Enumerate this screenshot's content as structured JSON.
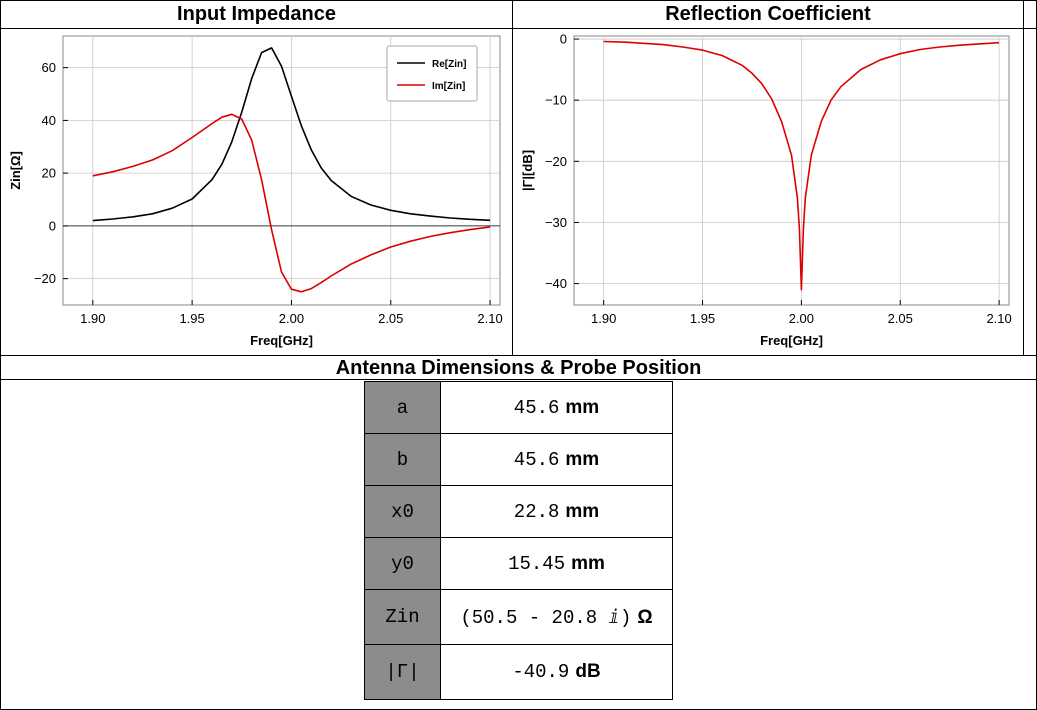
{
  "colors": {
    "series_re": "#000000",
    "series_im": "#dd0000",
    "series_gamma": "#dd0000",
    "key_cell_bg": "#8c8c8c",
    "grid": "#c8c8c8"
  },
  "panels": {
    "left_title": "Input Impedance",
    "right_title": "Reflection Coefficient",
    "bottom_title": "Antenna Dimensions & Probe Position"
  },
  "chart_data": [
    {
      "type": "line",
      "title": "Input Impedance",
      "xlabel": "Freq[GHz]",
      "ylabel": "Zin[Ω]",
      "xlim": [
        1.885,
        2.105
      ],
      "ylim": [
        -30,
        72
      ],
      "xticks": [
        1.9,
        1.95,
        2.0,
        2.05,
        2.1
      ],
      "xtick_labels": [
        "1.90",
        "1.95",
        "2.00",
        "2.05",
        "2.10"
      ],
      "yticks": [
        -20,
        0,
        20,
        40,
        60
      ],
      "ytick_labels": [
        "−20",
        "0",
        "20",
        "40",
        "60"
      ],
      "grid": true,
      "legend_position": "top-right",
      "series": [
        {
          "name": "Re[Zin]",
          "x": [
            1.9,
            1.91,
            1.92,
            1.93,
            1.94,
            1.95,
            1.96,
            1.965,
            1.97,
            1.975,
            1.98,
            1.985,
            1.99,
            1.995,
            2.0,
            2.005,
            2.01,
            2.015,
            2.02,
            2.03,
            2.04,
            2.05,
            2.06,
            2.07,
            2.08,
            2.09,
            2.1
          ],
          "y": [
            2.0,
            2.6,
            3.4,
            4.6,
            6.7,
            10.2,
            17.5,
            23.4,
            31.9,
            43.2,
            55.9,
            65.7,
            67.5,
            60.5,
            49.2,
            37.9,
            28.8,
            22.0,
            17.2,
            11.2,
            7.9,
            5.9,
            4.6,
            3.7,
            3.0,
            2.5,
            2.1
          ]
        },
        {
          "name": "Im[Zin]",
          "x": [
            1.9,
            1.91,
            1.92,
            1.93,
            1.94,
            1.95,
            1.96,
            1.965,
            1.97,
            1.975,
            1.98,
            1.985,
            1.99,
            1.995,
            2.0,
            2.005,
            2.01,
            2.015,
            2.02,
            2.03,
            2.04,
            2.05,
            2.06,
            2.07,
            2.08,
            2.09,
            2.1
          ],
          "y": [
            19.0,
            20.5,
            22.5,
            25.0,
            28.5,
            33.5,
            38.8,
            41.2,
            42.3,
            40.5,
            32.5,
            17.5,
            -1.5,
            -17.5,
            -24.0,
            -25.0,
            -23.8,
            -21.5,
            -19.0,
            -14.5,
            -11.0,
            -8.0,
            -5.8,
            -4.0,
            -2.6,
            -1.4,
            -0.4
          ]
        }
      ]
    },
    {
      "type": "line",
      "title": "Reflection Coefficient",
      "xlabel": "Freq[GHz]",
      "ylabel": "|Γ|[dB]",
      "xlim": [
        1.885,
        2.105
      ],
      "ylim": [
        -43.5,
        0.5
      ],
      "xticks": [
        1.9,
        1.95,
        2.0,
        2.05,
        2.1
      ],
      "xtick_labels": [
        "1.90",
        "1.95",
        "2.00",
        "2.05",
        "2.10"
      ],
      "yticks": [
        0,
        -10,
        -20,
        -30,
        -40
      ],
      "ytick_labels": [
        "0",
        "−10",
        "−20",
        "−30",
        "−40"
      ],
      "grid": true,
      "series": [
        {
          "x": [
            1.9,
            1.91,
            1.92,
            1.93,
            1.94,
            1.95,
            1.96,
            1.97,
            1.975,
            1.98,
            1.985,
            1.99,
            1.995,
            1.998,
            1.999,
            2.0,
            2.001,
            2.002,
            2.005,
            2.01,
            2.015,
            2.02,
            2.03,
            2.04,
            2.05,
            2.06,
            2.07,
            2.08,
            2.09,
            2.1
          ],
          "y": [
            -0.4,
            -0.5,
            -0.7,
            -0.9,
            -1.3,
            -1.8,
            -2.7,
            -4.3,
            -5.6,
            -7.3,
            -9.8,
            -13.5,
            -19.0,
            -26.0,
            -31.0,
            -41.0,
            -31.0,
            -26.0,
            -19.0,
            -13.5,
            -10.0,
            -7.8,
            -5.0,
            -3.4,
            -2.4,
            -1.7,
            -1.3,
            -1.0,
            -0.8,
            -0.6
          ]
        }
      ]
    }
  ],
  "dimensions": [
    {
      "key": "a",
      "value": "45.6",
      "unit": "mm"
    },
    {
      "key": "b",
      "value": "45.6",
      "unit": "mm"
    },
    {
      "key": "x0",
      "value": "22.8",
      "unit": "mm"
    },
    {
      "key": "y0",
      "value": "15.45",
      "unit": "mm"
    },
    {
      "key": "Zin",
      "value": "(50.5 - 20.8 ⅈ)",
      "unit": "Ω"
    },
    {
      "key": "|Γ|",
      "value": "-40.9",
      "unit": "dB"
    }
  ]
}
